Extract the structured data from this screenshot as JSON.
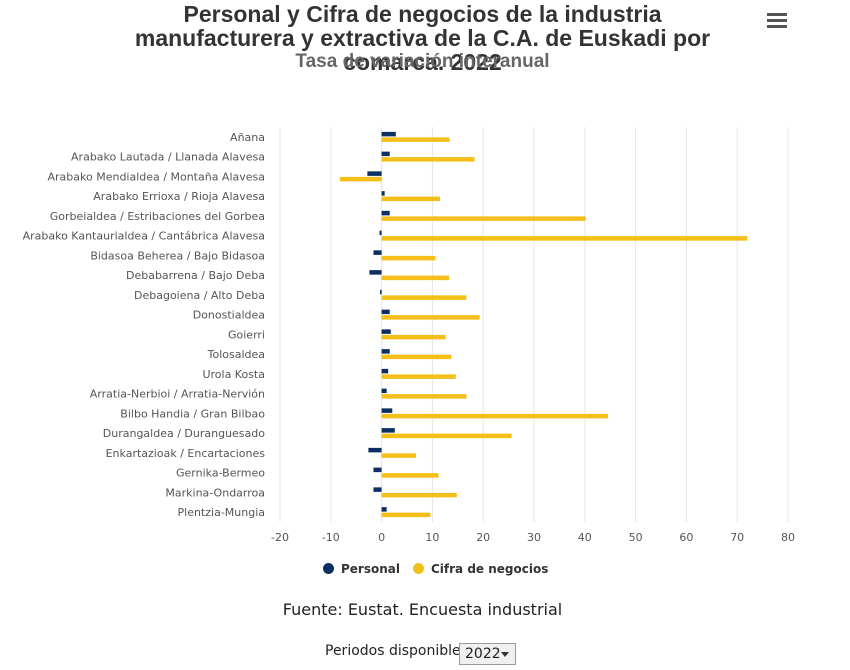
{
  "header": {
    "title_line1": "Personal y Cifra de negocios de la industria",
    "title_line2": "manufacturera y extractiva de la C.A. de Euskadi por",
    "title_line3": "comarca. 2022",
    "subtitle": "Tasa de variación interanual",
    "menu_icon": "hamburger-menu-icon"
  },
  "chart_data": {
    "type": "bar",
    "orientation": "horizontal",
    "categories": [
      "Añana",
      "Arabako Lautada / Llanada Alavesa",
      "Arabako Mendialdea / Montaña Alavesa",
      "Arabako Errioxa / Rioja Alavesa",
      "Gorbeialdea / Estribaciones del Gorbea",
      "Arabako Kantaurialdea / Cantábrica Alavesa",
      "Bidasoa Beherea / Bajo Bidasoa",
      "Debabarrena / Bajo Deba",
      "Debagoiena / Alto Deba",
      "Donostialdea",
      "Goierri",
      "Tolosaldea",
      "Urola Kosta",
      "Arratia-Nerbioi / Arratia-Nervión",
      "Bilbo Handia / Gran Bilbao",
      "Durangaldea / Duranguesado",
      "Enkartazioak / Encartaciones",
      "Gernika-Bermeo",
      "Markina-Ondarroa",
      "Plentzia-Mungia"
    ],
    "series": [
      {
        "name": "Personal",
        "color": "#0b2f63",
        "values": [
          2.8,
          1.6,
          -2.8,
          0.6,
          1.6,
          -0.4,
          -1.6,
          -2.4,
          -0.3,
          1.6,
          1.8,
          1.6,
          1.3,
          1.0,
          2.1,
          2.6,
          -2.6,
          -1.6,
          -1.6,
          1.0
        ]
      },
      {
        "name": "Cifra de negocios",
        "color": "#f5bf1a",
        "values": [
          13.4,
          18.3,
          -8.2,
          11.5,
          40.2,
          72.0,
          10.6,
          13.3,
          16.7,
          19.3,
          12.6,
          13.7,
          14.6,
          16.7,
          44.6,
          25.6,
          6.8,
          11.2,
          14.8,
          9.6
        ]
      }
    ],
    "xlim": [
      -20,
      80
    ],
    "xticks": [
      "-20",
      "-10",
      "0",
      "10",
      "20",
      "30",
      "40",
      "50",
      "60",
      "70",
      "80"
    ],
    "grid": true,
    "legend_position": "bottom-center"
  },
  "footer": {
    "source": "Fuente: Eustat. Encuesta industrial",
    "periods_label": "Periodos disponibles",
    "period_selected": "2022"
  }
}
